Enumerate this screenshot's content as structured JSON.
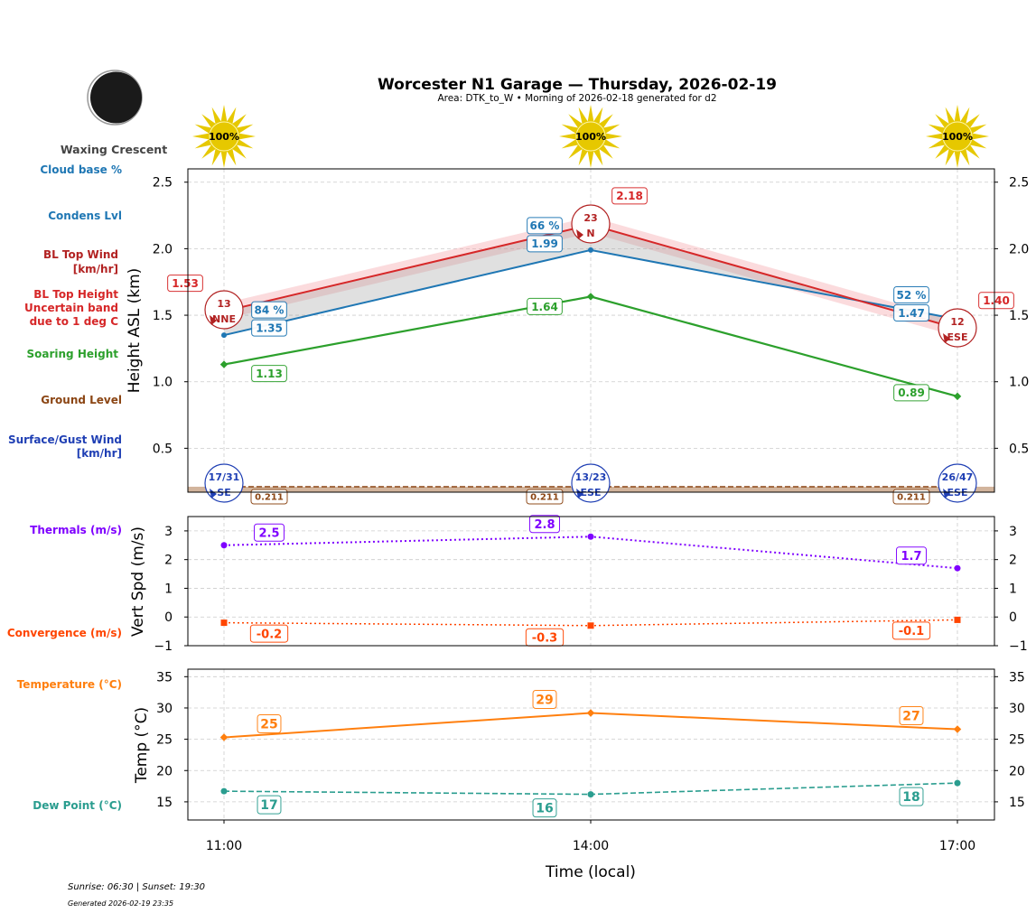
{
  "header": {
    "title": "Worcester N1 Garage — Thursday, 2026-02-19",
    "subtitle": "Area: DTK_to_W • Morning of 2026-02-18 generated for d2",
    "moon_phase": "Waxing Crescent"
  },
  "legend_labels": {
    "cloud_base": "Cloud base %",
    "condens": "Condens Lvl",
    "bl_wind_1": "BL Top Wind",
    "bl_wind_2": "[km/hr]",
    "bl_top_1": "BL Top Height",
    "bl_top_2": "Uncertain band",
    "bl_top_3": "due to 1 deg C",
    "soaring": "Soaring Height",
    "ground": "Ground Level",
    "surface_1": "Surface/Gust Wind",
    "surface_2": "[km/hr]",
    "thermals": "Thermals (m/s)",
    "convergence": "Convergence (m/s)",
    "temperature": "Temperature (°C)",
    "dewpoint": "Dew Point (°C)"
  },
  "footer": {
    "sun": "Sunrise: 06:30 | Sunset: 19:30",
    "generated": "Generated 2026-02-19 23:35"
  },
  "colors": {
    "cloud": "#1f77b4",
    "bl_wind": "#b22222",
    "bl_top": "#d62728",
    "soaring": "#2ca02c",
    "ground": "#8b4513",
    "surface": "#1f3fb4",
    "thermal": "#7f00ff",
    "convergence": "#ff4500",
    "temp": "#ff7f0e",
    "dew": "#2a9d8f",
    "sun": "#e6c800"
  },
  "chart_data": [
    {
      "type": "line",
      "x": [
        "11:00",
        "14:00",
        "17:00"
      ],
      "xlabel": "Time (local)",
      "ylabel": "Height ASL (km)",
      "ylim": [
        0.17,
        2.6
      ],
      "yticks": [
        "0.5",
        "1.0",
        "1.5",
        "2.0",
        "2.5"
      ],
      "grid": true,
      "sunshine_pct": [
        "100%",
        "100%",
        "100%"
      ],
      "series": [
        {
          "name": "BL Top Height",
          "values": [
            1.53,
            2.18,
            1.4
          ],
          "labels": [
            "1.53",
            "2.18",
            "1.40"
          ],
          "uncertainty": 0.06
        },
        {
          "name": "Condens Lvl",
          "values": [
            1.35,
            1.99,
            1.47
          ],
          "labels": [
            "1.35",
            "1.99",
            "1.47"
          ]
        },
        {
          "name": "Cloud base %",
          "labels": [
            "84 %",
            "66 %",
            "52 %"
          ]
        },
        {
          "name": "Soaring Height",
          "values": [
            1.13,
            1.64,
            0.89
          ],
          "labels": [
            "1.13",
            "1.64",
            "0.89"
          ]
        },
        {
          "name": "Ground Level",
          "values": [
            0.211,
            0.211,
            0.211
          ],
          "labels": [
            "0.211",
            "0.211",
            "0.211"
          ]
        }
      ],
      "bl_top_wind": [
        {
          "speed": "13",
          "dir": "NNE"
        },
        {
          "speed": "23",
          "dir": "N"
        },
        {
          "speed": "12",
          "dir": "ESE"
        }
      ],
      "surface_wind": [
        {
          "speed": "17/31",
          "dir": "SE"
        },
        {
          "speed": "13/23",
          "dir": "ESE"
        },
        {
          "speed": "26/47",
          "dir": "ESE"
        }
      ]
    },
    {
      "type": "line",
      "x": [
        "11:00",
        "14:00",
        "17:00"
      ],
      "ylabel": "Vert Spd (m/s)",
      "ylim": [
        -1,
        3.5
      ],
      "yticks": [
        "−1",
        "0",
        "1",
        "2",
        "3"
      ],
      "grid": true,
      "series": [
        {
          "name": "Thermals (m/s)",
          "values": [
            2.5,
            2.8,
            1.7
          ],
          "labels": [
            "2.5",
            "2.8",
            "1.7"
          ]
        },
        {
          "name": "Convergence (m/s)",
          "values": [
            -0.2,
            -0.3,
            -0.1
          ],
          "labels": [
            "-0.2",
            "-0.3",
            "-0.1"
          ]
        }
      ]
    },
    {
      "type": "line",
      "x": [
        "11:00",
        "14:00",
        "17:00"
      ],
      "ylabel": "Temp (°C)",
      "ylim": [
        12.1,
        36.2
      ],
      "yticks": [
        "15",
        "20",
        "25",
        "30",
        "35"
      ],
      "grid": true,
      "series": [
        {
          "name": "Temperature (°C)",
          "values": [
            25.3,
            29.2,
            26.6
          ],
          "labels": [
            "25",
            "29",
            "27"
          ]
        },
        {
          "name": "Dew Point (°C)",
          "values": [
            16.7,
            16.2,
            18.0
          ],
          "labels": [
            "17",
            "16",
            "18"
          ]
        }
      ]
    }
  ]
}
